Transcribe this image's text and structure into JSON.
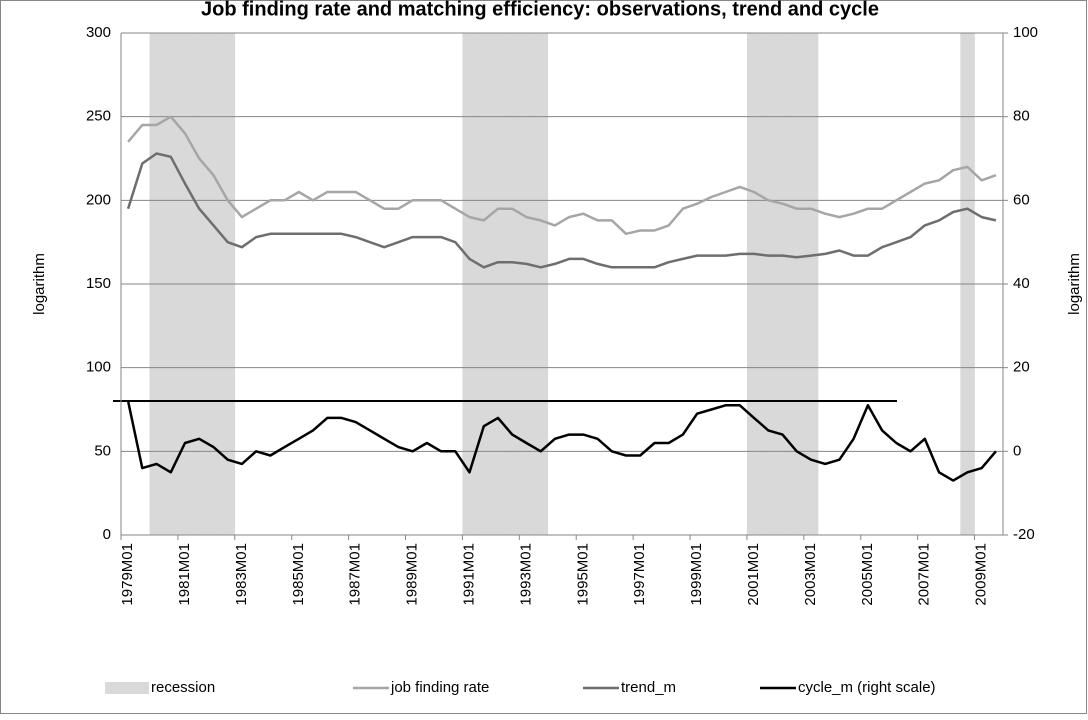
{
  "chart_data": {
    "type": "line",
    "title": "Job finding rate and matching efficiency: observations, trend and cycle",
    "ylabel": "logarithm",
    "y2label": "logarithm",
    "categories": [
      "1979M01",
      null,
      null,
      null,
      "1981M01",
      null,
      null,
      null,
      "1983M01",
      null,
      null,
      null,
      "1985M01",
      null,
      null,
      null,
      "1987M01",
      null,
      null,
      null,
      "1989M01",
      null,
      null,
      null,
      "1991M01",
      null,
      null,
      null,
      "1993M01",
      null,
      null,
      null,
      "1995M01",
      null,
      null,
      null,
      "1997M01",
      null,
      null,
      null,
      "1999M01",
      null,
      null,
      null,
      "2001M01",
      null,
      null,
      null,
      "2003M01",
      null,
      null,
      null,
      "2005M01",
      null,
      null,
      null,
      "2007M01",
      null,
      null,
      null,
      "2009M01",
      null
    ],
    "ylim": [
      0,
      300
    ],
    "yticks": [
      0,
      50,
      100,
      150,
      200,
      250,
      300
    ],
    "y2lim": [
      -20,
      100
    ],
    "y2ticks": [
      -20,
      0,
      20,
      40,
      60,
      80,
      100
    ],
    "grid": true,
    "series": [
      {
        "name": "recession",
        "type": "bar",
        "color": "#d9d9d9",
        "values": [
          0,
          0,
          300,
          300,
          300,
          300,
          300,
          300,
          0,
          0,
          0,
          0,
          0,
          0,
          0,
          0,
          0,
          0,
          0,
          0,
          0,
          0,
          0,
          0,
          300,
          300,
          300,
          300,
          300,
          300,
          0,
          0,
          0,
          0,
          0,
          0,
          0,
          0,
          0,
          0,
          0,
          0,
          0,
          0,
          300,
          300,
          300,
          300,
          300,
          0,
          0,
          0,
          0,
          0,
          0,
          0,
          0,
          0,
          0,
          300,
          0,
          0
        ]
      },
      {
        "name": "job finding rate",
        "type": "line",
        "color": "#a6a6a6",
        "values": [
          235,
          245,
          245,
          250,
          240,
          225,
          215,
          200,
          190,
          195,
          200,
          200,
          205,
          200,
          205,
          205,
          205,
          200,
          195,
          195,
          200,
          200,
          200,
          195,
          190,
          188,
          195,
          195,
          190,
          188,
          185,
          190,
          192,
          188,
          188,
          180,
          182,
          182,
          185,
          195,
          198,
          202,
          205,
          208,
          205,
          200,
          198,
          195,
          195,
          192,
          190,
          192,
          195,
          195,
          200,
          205,
          210,
          212,
          218,
          220,
          212,
          215
        ]
      },
      {
        "name": "trend_m",
        "type": "line",
        "color": "#6e6e6e",
        "values": [
          195,
          222,
          228,
          226,
          210,
          195,
          185,
          175,
          172,
          178,
          180,
          180,
          180,
          180,
          180,
          180,
          178,
          175,
          172,
          175,
          178,
          178,
          178,
          175,
          165,
          160,
          163,
          163,
          162,
          160,
          162,
          165,
          165,
          162,
          160,
          160,
          160,
          160,
          163,
          165,
          167,
          167,
          167,
          168,
          168,
          167,
          167,
          166,
          167,
          168,
          170,
          167,
          167,
          172,
          175,
          178,
          185,
          188,
          193,
          195,
          190,
          188
        ]
      },
      {
        "name": "cycle_m (right scale)",
        "type": "line",
        "color": "#000000",
        "axis": "y2",
        "values": [
          12,
          -4,
          -3,
          -5,
          2,
          3,
          1,
          -2,
          -3,
          0,
          -1,
          1,
          3,
          5,
          8,
          8,
          7,
          5,
          3,
          1,
          0,
          2,
          0,
          0,
          -5,
          6,
          8,
          4,
          2,
          0,
          3,
          4,
          4,
          3,
          0,
          -1,
          -1,
          2,
          2,
          4,
          9,
          10,
          11,
          11,
          8,
          5,
          4,
          0,
          -2,
          -3,
          -2,
          3,
          11,
          5,
          2,
          0,
          3,
          -5,
          -7,
          -5,
          -4,
          0
        ]
      }
    ]
  }
}
